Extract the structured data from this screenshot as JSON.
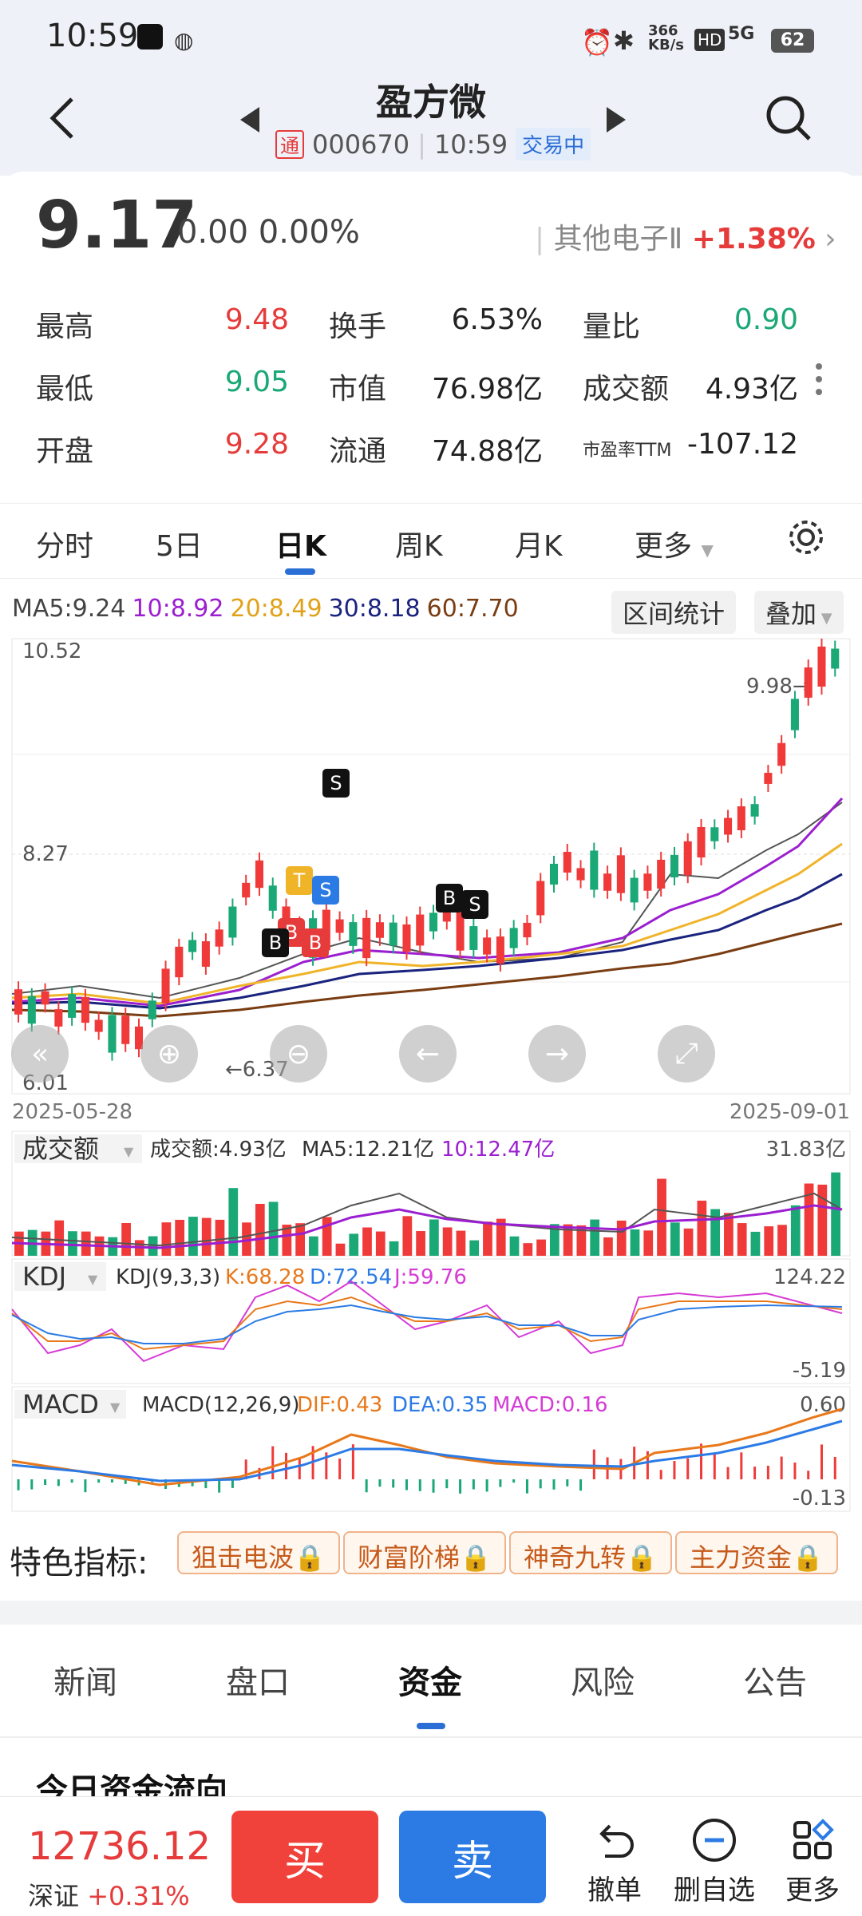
{
  "status": {
    "time": "10:59",
    "net_speed": "366\nKB/s",
    "signal": "5G",
    "battery": "62"
  },
  "header": {
    "title": "盈方微",
    "badge": "通",
    "code": "000670",
    "time": "10:59",
    "trade_state": "交易中"
  },
  "quote": {
    "price": "9.17",
    "change": "0.00",
    "change_pct": "0.00%",
    "sector": "其他电子Ⅱ",
    "sector_pct": "+1.38%"
  },
  "stats": [
    {
      "label": "最高",
      "value": "9.48",
      "color": "red"
    },
    {
      "label": "换手",
      "value": "6.53%",
      "color": "dark"
    },
    {
      "label": "量比",
      "value": "0.90",
      "color": "green"
    },
    {
      "label": "最低",
      "value": "9.05",
      "color": "green"
    },
    {
      "label": "市值",
      "value": "76.98亿",
      "color": "dark"
    },
    {
      "label": "成交额",
      "value": "4.93亿",
      "color": "dark"
    },
    {
      "label": "开盘",
      "value": "9.28",
      "color": "red"
    },
    {
      "label": "流通",
      "value": "74.88亿",
      "color": "dark"
    },
    {
      "label": "市盈率TTM",
      "value": "-107.12",
      "color": "dark"
    }
  ],
  "ktabs": [
    "分时",
    "5日",
    "日K",
    "周K",
    "月K",
    "更多"
  ],
  "ma": {
    "ma5": "MA5:9.24",
    "ma10": "10:8.92",
    "ma20": "20:8.49",
    "ma30": "30:8.18",
    "ma60": "60:7.70"
  },
  "ma_buttons": {
    "range": "区间统计",
    "overlay": "叠加"
  },
  "kline": {
    "top_label": "10.52",
    "mid_label": "8.27",
    "bottom_label": "6.01",
    "max_label": "9.98→",
    "min_label": "←6.37",
    "date_start": "2025-05-28",
    "date_end": "2025-09-01",
    "markers": [
      "S",
      "T",
      "B",
      "B",
      "S",
      "B",
      "B",
      "S"
    ]
  },
  "volume": {
    "title": "成交额",
    "info": "成交额:4.93亿",
    "ma5": "MA5:12.21亿",
    "ma10": "10:12.47亿",
    "max_label": "31.83亿"
  },
  "kdj": {
    "title": "KDJ",
    "params": "KDJ(9,3,3)",
    "k": "K:68.28",
    "d": "D:72.54",
    "j": "J:59.76",
    "max_label": "124.22",
    "min_label": "-5.19"
  },
  "macd": {
    "title": "MACD",
    "params": "MACD(12,26,9)",
    "dif": "DIF:0.43",
    "dea": "DEA:0.35",
    "macd": "MACD:0.16",
    "max_label": "0.60",
    "min_label": "-0.13"
  },
  "features": {
    "label": "特色指标:",
    "items": [
      "狙击电波",
      "财富阶梯",
      "神奇九转",
      "主力资金"
    ]
  },
  "bottom_tabs": [
    "新闻",
    "盘口",
    "资金",
    "风险",
    "公告"
  ],
  "flow_title": "今日资金流向",
  "footer": {
    "index_value": "12736.12",
    "index_name": "深证",
    "index_pct": "+0.31%",
    "buy": "买",
    "sell": "卖",
    "cancel": "撤单",
    "remove": "删自选",
    "more": "更多"
  },
  "colors": {
    "up": "#e63b3b",
    "down": "#1aa876",
    "accent": "#2b6fd6"
  }
}
